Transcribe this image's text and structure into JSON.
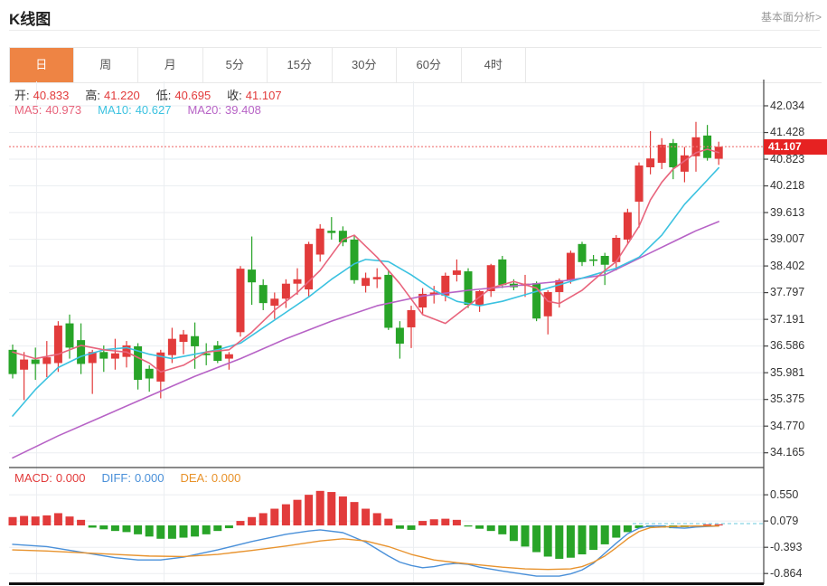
{
  "header": {
    "title": "K线图",
    "link": "基本面分析>"
  },
  "tabs": {
    "items": [
      "日",
      "周",
      "月",
      "5分",
      "15分",
      "30分",
      "60分",
      "4时"
    ],
    "selected": "日",
    "selected_index": 0
  },
  "info": {
    "ohlc": [
      {
        "label": "开:",
        "value": "40.833"
      },
      {
        "label": "高:",
        "value": "41.220"
      },
      {
        "label": "低:",
        "value": "40.695"
      },
      {
        "label": "收:",
        "value": "41.107"
      }
    ],
    "ma": [
      {
        "label": "MA5:",
        "value": "40.973",
        "color": "#e8647c"
      },
      {
        "label": "MA10:",
        "value": "40.627",
        "color": "#3bc2e0"
      },
      {
        "label": "MA20:",
        "value": "39.408",
        "color": "#b763c6"
      }
    ]
  },
  "macd_info": [
    {
      "label": "MACD:",
      "value": "0.000",
      "color": "#e23b3b"
    },
    {
      "label": "DIFF:",
      "value": "0.000",
      "color": "#4a90d9"
    },
    {
      "label": "DEA:",
      "value": "0.000",
      "color": "#e8922a"
    }
  ],
  "colors": {
    "up": "#e23b3b",
    "down": "#28a428",
    "ma5": "#e8647c",
    "ma10": "#3bc2e0",
    "ma20": "#b763c6",
    "diff": "#4a90d9",
    "dea": "#e8932e",
    "accent": "#ee8444",
    "price_line": "#f07575",
    "price_box_bg": "#e62222",
    "grid": "#ebeef1",
    "axis": "#444444",
    "macd_dash": "#86d3e3"
  },
  "chart_data": {
    "type": "candlestick+macd",
    "price_axis": {
      "labels": [
        "42.034",
        "41.428",
        "40.823",
        "40.218",
        "39.613",
        "39.007",
        "38.402",
        "37.797",
        "37.191",
        "36.586",
        "35.981",
        "35.375",
        "34.770",
        "34.165"
      ],
      "top_value": 42.034,
      "bottom_value": 34.165,
      "last_price": 41.107,
      "last_price_label": "41.107"
    },
    "macd_axis": {
      "labels": [
        "0.550",
        "0.079",
        "-0.393",
        "-0.864"
      ],
      "values": [
        0.55,
        0.079,
        -0.393,
        -0.864
      ]
    },
    "x_gridlines_index": [
      2.1,
      13.3,
      35.2,
      55.4
    ],
    "candles": [
      [
        36.5,
        36.62,
        35.85,
        35.95
      ],
      [
        36.05,
        36.45,
        35.36,
        36.28
      ],
      [
        36.28,
        36.55,
        35.82,
        36.18
      ],
      [
        36.18,
        36.7,
        35.88,
        36.33
      ],
      [
        36.2,
        37.15,
        36.0,
        37.05
      ],
      [
        37.1,
        37.3,
        36.3,
        36.55
      ],
      [
        36.72,
        37.1,
        35.95,
        36.18
      ],
      [
        36.2,
        36.5,
        35.5,
        36.45
      ],
      [
        36.45,
        36.6,
        36.0,
        36.3
      ],
      [
        36.3,
        36.75,
        36.05,
        36.42
      ],
      [
        36.34,
        36.7,
        36.1,
        36.6
      ],
      [
        36.58,
        36.65,
        35.6,
        35.82
      ],
      [
        36.07,
        36.15,
        35.55,
        35.85
      ],
      [
        35.78,
        36.5,
        35.4,
        36.44
      ],
      [
        36.38,
        37.0,
        36.2,
        36.75
      ],
      [
        36.68,
        36.95,
        36.4,
        36.85
      ],
      [
        36.81,
        37.12,
        36.07,
        36.58
      ],
      [
        36.42,
        36.65,
        36.15,
        36.38
      ],
      [
        36.6,
        36.7,
        36.2,
        36.25
      ],
      [
        36.3,
        36.45,
        36.05,
        36.4
      ],
      [
        36.9,
        38.4,
        36.8,
        38.34
      ],
      [
        38.32,
        39.07,
        37.52,
        38.03
      ],
      [
        37.97,
        38.1,
        37.4,
        37.56
      ],
      [
        37.5,
        37.8,
        37.2,
        37.66
      ],
      [
        37.66,
        38.1,
        37.45,
        38.0
      ],
      [
        38.0,
        38.35,
        37.75,
        38.1
      ],
      [
        37.87,
        38.95,
        37.7,
        38.9
      ],
      [
        38.66,
        39.35,
        38.5,
        39.25
      ],
      [
        39.2,
        39.51,
        39.0,
        39.15
      ],
      [
        39.2,
        39.3,
        38.85,
        38.94
      ],
      [
        39.0,
        39.1,
        38.0,
        38.08
      ],
      [
        37.95,
        38.25,
        37.8,
        38.13
      ],
      [
        38.1,
        38.35,
        37.9,
        38.15
      ],
      [
        38.2,
        38.3,
        36.95,
        37.0
      ],
      [
        37.0,
        37.15,
        36.3,
        36.64
      ],
      [
        37.01,
        37.5,
        36.54,
        37.4
      ],
      [
        37.46,
        37.9,
        37.3,
        37.77
      ],
      [
        37.75,
        37.95,
        37.55,
        37.8
      ],
      [
        37.73,
        38.25,
        37.6,
        38.18
      ],
      [
        38.2,
        38.55,
        38.05,
        38.3
      ],
      [
        38.28,
        38.35,
        37.45,
        37.52
      ],
      [
        37.5,
        37.85,
        37.36,
        37.83
      ],
      [
        37.83,
        38.45,
        37.7,
        38.42
      ],
      [
        38.55,
        38.63,
        37.9,
        37.97
      ],
      [
        38.0,
        38.1,
        37.85,
        37.92
      ],
      [
        37.95,
        38.2,
        37.7,
        38.0
      ],
      [
        38.01,
        38.05,
        37.15,
        37.21
      ],
      [
        37.26,
        37.85,
        36.85,
        37.81
      ],
      [
        37.81,
        38.12,
        37.46,
        38.08
      ],
      [
        38.08,
        38.75,
        38.0,
        38.7
      ],
      [
        38.9,
        38.95,
        38.4,
        38.49
      ],
      [
        38.55,
        38.65,
        38.4,
        38.53
      ],
      [
        38.63,
        38.7,
        37.97,
        38.43
      ],
      [
        38.49,
        39.1,
        38.3,
        39.04
      ],
      [
        39.0,
        39.7,
        38.9,
        39.62
      ],
      [
        39.86,
        40.75,
        39.27,
        40.68
      ],
      [
        40.64,
        41.46,
        40.48,
        40.84
      ],
      [
        40.74,
        41.3,
        40.6,
        41.15
      ],
      [
        41.19,
        41.28,
        40.37,
        40.64
      ],
      [
        40.54,
        41.1,
        40.3,
        40.91
      ],
      [
        40.89,
        41.67,
        40.54,
        41.32
      ],
      [
        41.36,
        41.6,
        40.79,
        40.85
      ],
      [
        40.833,
        41.22,
        40.695,
        41.107
      ]
    ],
    "ma5": [
      [
        0,
        36.45
      ],
      [
        2,
        36.3
      ],
      [
        4,
        36.4
      ],
      [
        6,
        36.6
      ],
      [
        8,
        36.5
      ],
      [
        10,
        36.45
      ],
      [
        12,
        36.2
      ],
      [
        13,
        36.0
      ],
      [
        15,
        36.15
      ],
      [
        17,
        36.45
      ],
      [
        19,
        36.5
      ],
      [
        21,
        36.9
      ],
      [
        23,
        37.4
      ],
      [
        25,
        37.8
      ],
      [
        27,
        38.3
      ],
      [
        29,
        39.0
      ],
      [
        30,
        39.1
      ],
      [
        32,
        38.6
      ],
      [
        34,
        38.0
      ],
      [
        36,
        37.3
      ],
      [
        38,
        37.1
      ],
      [
        40,
        37.5
      ],
      [
        42,
        37.9
      ],
      [
        44,
        38.05
      ],
      [
        46,
        37.9
      ],
      [
        47,
        37.6
      ],
      [
        48,
        37.55
      ],
      [
        50,
        37.85
      ],
      [
        52,
        38.3
      ],
      [
        53,
        38.5
      ],
      [
        55,
        39.3
      ],
      [
        56,
        39.9
      ],
      [
        57,
        40.3
      ],
      [
        58,
        40.6
      ],
      [
        60,
        40.97
      ],
      [
        61,
        41.05
      ],
      [
        62,
        40.973
      ]
    ],
    "ma10": [
      [
        0,
        35.0
      ],
      [
        2,
        35.6
      ],
      [
        4,
        36.1
      ],
      [
        6,
        36.35
      ],
      [
        8,
        36.5
      ],
      [
        10,
        36.55
      ],
      [
        12,
        36.4
      ],
      [
        14,
        36.3
      ],
      [
        16,
        36.4
      ],
      [
        18,
        36.5
      ],
      [
        20,
        36.65
      ],
      [
        22,
        37.0
      ],
      [
        24,
        37.35
      ],
      [
        26,
        37.7
      ],
      [
        28,
        38.1
      ],
      [
        30,
        38.45
      ],
      [
        31,
        38.55
      ],
      [
        33,
        38.5
      ],
      [
        35,
        38.2
      ],
      [
        37,
        37.85
      ],
      [
        39,
        37.6
      ],
      [
        41,
        37.5
      ],
      [
        43,
        37.6
      ],
      [
        45,
        37.75
      ],
      [
        47,
        37.9
      ],
      [
        49,
        38.05
      ],
      [
        51,
        38.2
      ],
      [
        53,
        38.35
      ],
      [
        55,
        38.6
      ],
      [
        57,
        39.1
      ],
      [
        59,
        39.8
      ],
      [
        61,
        40.35
      ],
      [
        62,
        40.627
      ]
    ],
    "ma20": [
      [
        0,
        34.05
      ],
      [
        4,
        34.55
      ],
      [
        8,
        35.0
      ],
      [
        12,
        35.45
      ],
      [
        16,
        35.9
      ],
      [
        20,
        36.3
      ],
      [
        24,
        36.75
      ],
      [
        28,
        37.15
      ],
      [
        32,
        37.5
      ],
      [
        36,
        37.72
      ],
      [
        40,
        37.85
      ],
      [
        44,
        37.95
      ],
      [
        48,
        38.05
      ],
      [
        52,
        38.2
      ],
      [
        54,
        38.45
      ],
      [
        56,
        38.7
      ],
      [
        58,
        38.95
      ],
      [
        60,
        39.2
      ],
      [
        62,
        39.408
      ]
    ],
    "macd_hist": [
      0.15,
      0.17,
      0.16,
      0.18,
      0.22,
      0.16,
      0.1,
      -0.04,
      -0.07,
      -0.1,
      -0.12,
      -0.16,
      -0.2,
      -0.24,
      -0.24,
      -0.22,
      -0.2,
      -0.16,
      -0.1,
      -0.05,
      0.08,
      0.15,
      0.22,
      0.3,
      0.38,
      0.46,
      0.55,
      0.62,
      0.6,
      0.52,
      0.42,
      0.3,
      0.22,
      0.12,
      -0.06,
      -0.08,
      0.08,
      0.11,
      0.12,
      0.1,
      -0.02,
      -0.06,
      -0.1,
      -0.16,
      -0.28,
      -0.38,
      -0.48,
      -0.56,
      -0.6,
      -0.58,
      -0.52,
      -0.44,
      -0.34,
      -0.22,
      -0.12,
      -0.05,
      -0.03,
      -0.04,
      -0.05,
      -0.03,
      -0.02,
      0.01,
      0.0
    ],
    "diff": [
      [
        0,
        -0.34
      ],
      [
        3,
        -0.38
      ],
      [
        6,
        -0.48
      ],
      [
        9,
        -0.58
      ],
      [
        11,
        -0.62
      ],
      [
        13,
        -0.62
      ],
      [
        15,
        -0.57
      ],
      [
        18,
        -0.44
      ],
      [
        21,
        -0.29
      ],
      [
        24,
        -0.16
      ],
      [
        26,
        -0.1
      ],
      [
        27,
        -0.08
      ],
      [
        29,
        -0.13
      ],
      [
        31,
        -0.3
      ],
      [
        33,
        -0.55
      ],
      [
        34,
        -0.66
      ],
      [
        35,
        -0.72
      ],
      [
        36,
        -0.76
      ],
      [
        37,
        -0.74
      ],
      [
        38,
        -0.7
      ],
      [
        39,
        -0.68
      ],
      [
        40,
        -0.7
      ],
      [
        41,
        -0.75
      ],
      [
        43,
        -0.82
      ],
      [
        45,
        -0.88
      ],
      [
        46,
        -0.91
      ],
      [
        48,
        -0.91
      ],
      [
        49,
        -0.87
      ],
      [
        50,
        -0.8
      ],
      [
        51,
        -0.68
      ],
      [
        52,
        -0.5
      ],
      [
        53,
        -0.32
      ],
      [
        54,
        -0.15
      ],
      [
        55,
        -0.05
      ],
      [
        56,
        -0.01
      ],
      [
        57,
        -0.01
      ],
      [
        58,
        -0.04
      ],
      [
        59,
        -0.05
      ],
      [
        60,
        -0.03
      ],
      [
        61,
        -0.02
      ],
      [
        62,
        -0.01
      ]
    ],
    "dea": [
      [
        0,
        -0.44
      ],
      [
        3,
        -0.46
      ],
      [
        6,
        -0.49
      ],
      [
        9,
        -0.52
      ],
      [
        12,
        -0.55
      ],
      [
        15,
        -0.56
      ],
      [
        18,
        -0.52
      ],
      [
        21,
        -0.45
      ],
      [
        24,
        -0.37
      ],
      [
        27,
        -0.28
      ],
      [
        29,
        -0.24
      ],
      [
        31,
        -0.28
      ],
      [
        33,
        -0.38
      ],
      [
        35,
        -0.52
      ],
      [
        37,
        -0.62
      ],
      [
        39,
        -0.67
      ],
      [
        41,
        -0.71
      ],
      [
        43,
        -0.75
      ],
      [
        45,
        -0.78
      ],
      [
        47,
        -0.79
      ],
      [
        49,
        -0.78
      ],
      [
        50,
        -0.74
      ],
      [
        51,
        -0.66
      ],
      [
        52,
        -0.55
      ],
      [
        53,
        -0.4
      ],
      [
        54,
        -0.24
      ],
      [
        55,
        -0.11
      ],
      [
        56,
        -0.04
      ],
      [
        58,
        -0.02
      ],
      [
        60,
        -0.01
      ],
      [
        62,
        -0.01
      ]
    ],
    "macd_last_value": 0.0
  }
}
